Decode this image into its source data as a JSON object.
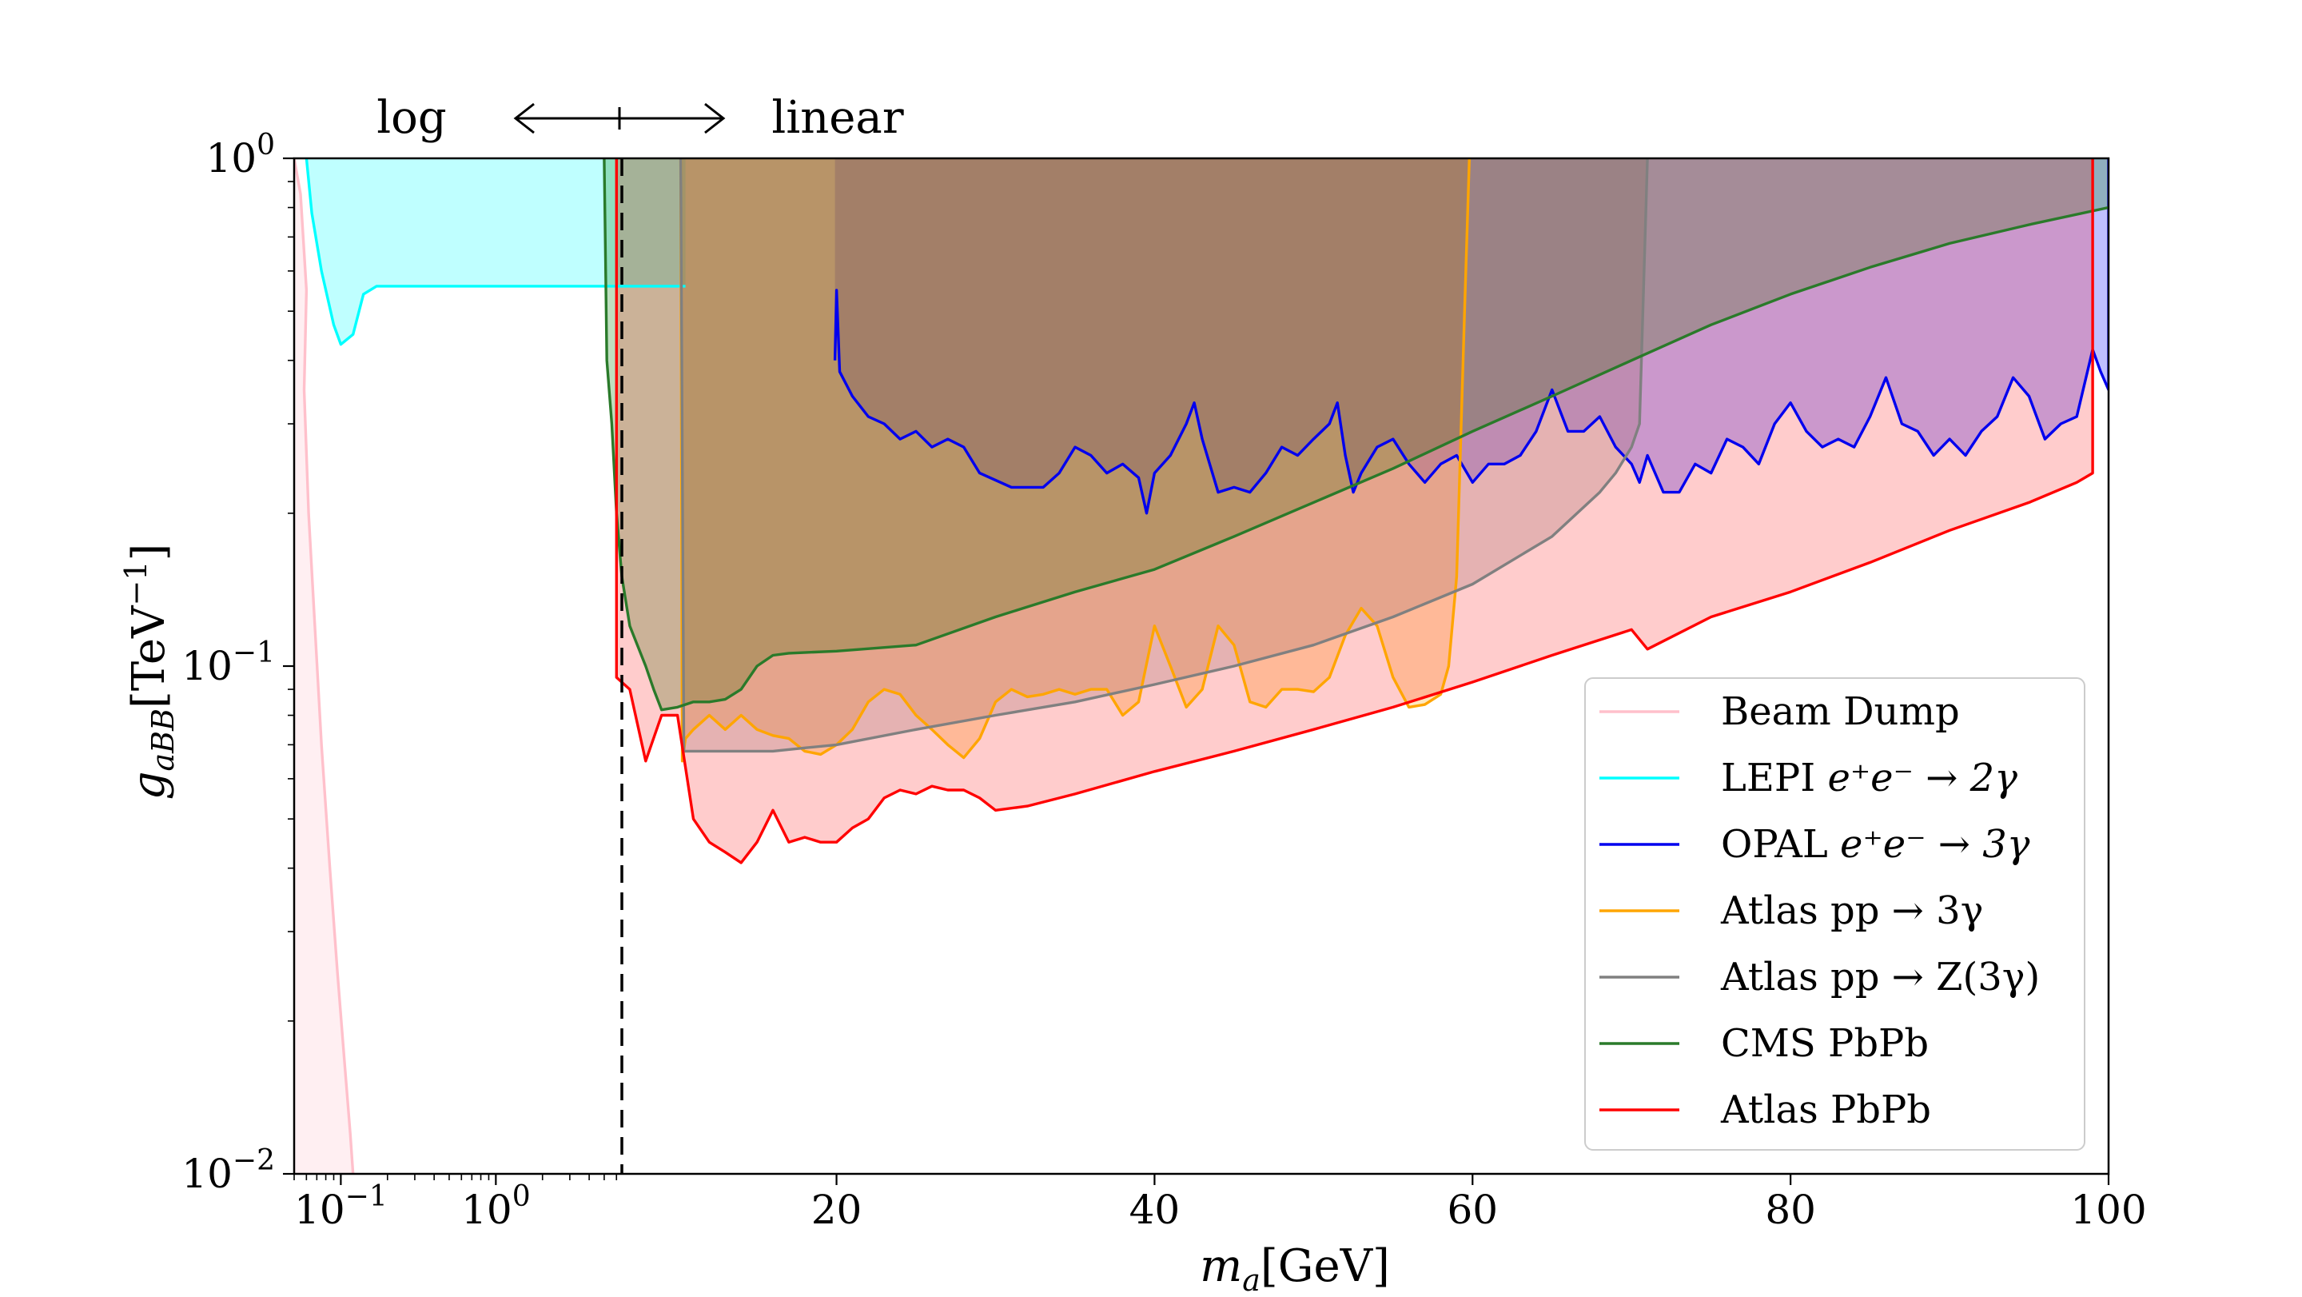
{
  "chart_data": {
    "type": "area",
    "xlabel": "m_a[GeV]",
    "ylabel": "g_aBB[TeV^-1]",
    "x_scale": "log (x < 6.5 GeV) / linear (x > 6.5 GeV)",
    "x_split": 6.5,
    "xlim": [
      0.05,
      100
    ],
    "ylim": [
      0.01,
      1
    ],
    "y_scale": "log",
    "x_ticks_log": [
      {
        "value": 0.1,
        "label": "10",
        "exp": "−1"
      },
      {
        "value": 1,
        "label": "10",
        "exp": "0"
      }
    ],
    "x_ticks_linear": [
      {
        "value": 20,
        "label": "20"
      },
      {
        "value": 40,
        "label": "40"
      },
      {
        "value": 60,
        "label": "60"
      },
      {
        "value": 80,
        "label": "80"
      },
      {
        "value": 100,
        "label": "100"
      }
    ],
    "y_ticks": [
      {
        "value": 1,
        "label": "10",
        "exp": "0"
      },
      {
        "value": 0.1,
        "label": "10",
        "exp": "−1"
      },
      {
        "value": 0.01,
        "label": "10",
        "exp": "−2"
      }
    ],
    "annotations": {
      "log": "log",
      "linear": "linear"
    },
    "legend_position": "lower-right",
    "series": [
      {
        "name": "Beam Dump",
        "legend": "Beam Dump",
        "color": "#ffc0cb",
        "fill": "#ffc0cb",
        "fill_opacity": 0.25,
        "fill_to": "left",
        "points": [
          [
            0.05,
            1.0
          ],
          [
            0.055,
            0.85
          ],
          [
            0.06,
            0.55
          ],
          [
            0.058,
            0.35
          ],
          [
            0.062,
            0.2
          ],
          [
            0.068,
            0.12
          ],
          [
            0.075,
            0.07
          ],
          [
            0.085,
            0.04
          ],
          [
            0.095,
            0.025
          ],
          [
            0.105,
            0.017
          ],
          [
            0.115,
            0.012
          ],
          [
            0.12,
            0.01
          ]
        ]
      },
      {
        "name": "LEPI e+e- -> 2gamma",
        "legend": "LEPI ",
        "legend_math": "e⁺e⁻ → 2γ",
        "color": "#00ffff",
        "fill": "#00ffff",
        "fill_opacity": 0.25,
        "fill_to": "top",
        "points": [
          [
            0.06,
            1.0
          ],
          [
            0.065,
            0.78
          ],
          [
            0.075,
            0.6
          ],
          [
            0.09,
            0.47
          ],
          [
            0.1,
            0.43
          ],
          [
            0.12,
            0.45
          ],
          [
            0.14,
            0.54
          ],
          [
            0.17,
            0.56
          ],
          [
            0.5,
            0.56
          ],
          [
            2,
            0.56
          ],
          [
            6.5,
            0.56
          ],
          [
            7.5,
            0.56
          ],
          [
            10.5,
            0.56
          ]
        ]
      },
      {
        "name": "OPAL e+e- -> 3gamma",
        "legend": "OPAL ",
        "legend_math": "e⁺e⁻ → 3γ",
        "color": "#0000ee",
        "fill": "#0000ff",
        "fill_opacity": 0.25,
        "fill_to": "top",
        "points": [
          [
            19.9,
            0.4
          ],
          [
            20.0,
            0.55
          ],
          [
            20.2,
            0.38
          ],
          [
            21,
            0.34
          ],
          [
            22,
            0.31
          ],
          [
            23,
            0.3
          ],
          [
            24,
            0.28
          ],
          [
            25,
            0.29
          ],
          [
            26,
            0.27
          ],
          [
            27,
            0.28
          ],
          [
            28,
            0.27
          ],
          [
            29,
            0.24
          ],
          [
            31,
            0.225
          ],
          [
            33,
            0.225
          ],
          [
            34,
            0.24
          ],
          [
            35,
            0.27
          ],
          [
            36,
            0.26
          ],
          [
            37,
            0.24
          ],
          [
            38,
            0.25
          ],
          [
            39,
            0.235
          ],
          [
            39.5,
            0.2
          ],
          [
            40,
            0.24
          ],
          [
            41,
            0.26
          ],
          [
            42,
            0.3
          ],
          [
            42.5,
            0.33
          ],
          [
            43,
            0.28
          ],
          [
            44,
            0.22
          ],
          [
            45,
            0.225
          ],
          [
            46,
            0.22
          ],
          [
            47,
            0.24
          ],
          [
            48,
            0.27
          ],
          [
            49,
            0.26
          ],
          [
            50,
            0.28
          ],
          [
            51,
            0.3
          ],
          [
            51.5,
            0.33
          ],
          [
            52,
            0.26
          ],
          [
            52.5,
            0.22
          ],
          [
            53,
            0.24
          ],
          [
            54,
            0.27
          ],
          [
            55,
            0.28
          ],
          [
            56,
            0.25
          ],
          [
            57,
            0.23
          ],
          [
            58,
            0.25
          ],
          [
            59,
            0.26
          ],
          [
            60,
            0.23
          ],
          [
            61,
            0.25
          ],
          [
            62,
            0.25
          ],
          [
            63,
            0.26
          ],
          [
            64,
            0.29
          ],
          [
            65,
            0.35
          ],
          [
            66,
            0.29
          ],
          [
            67,
            0.29
          ],
          [
            68,
            0.31
          ],
          [
            69,
            0.27
          ],
          [
            70,
            0.25
          ],
          [
            70.5,
            0.23
          ],
          [
            71,
            0.26
          ],
          [
            72,
            0.22
          ],
          [
            73,
            0.22
          ],
          [
            74,
            0.25
          ],
          [
            75,
            0.24
          ],
          [
            76,
            0.28
          ],
          [
            77,
            0.27
          ],
          [
            78,
            0.25
          ],
          [
            79,
            0.3
          ],
          [
            80,
            0.33
          ],
          [
            81,
            0.29
          ],
          [
            82,
            0.27
          ],
          [
            83,
            0.28
          ],
          [
            84,
            0.27
          ],
          [
            85,
            0.31
          ],
          [
            86,
            0.37
          ],
          [
            87,
            0.3
          ],
          [
            88,
            0.29
          ],
          [
            89,
            0.26
          ],
          [
            90,
            0.28
          ],
          [
            91,
            0.26
          ],
          [
            92,
            0.29
          ],
          [
            93,
            0.31
          ],
          [
            94,
            0.37
          ],
          [
            95,
            0.34
          ],
          [
            96,
            0.28
          ],
          [
            97,
            0.3
          ],
          [
            98,
            0.31
          ],
          [
            99,
            0.42
          ],
          [
            99.5,
            0.38
          ],
          [
            100,
            0.35
          ],
          [
            100,
            1.0
          ]
        ]
      },
      {
        "name": "Atlas pp -> 3gamma",
        "legend": "Atlas pp → 3γ",
        "color": "#ffa500",
        "fill": "#ffa500",
        "fill_opacity": 0.25,
        "fill_to": "top",
        "points": [
          [
            10.2,
            1.0
          ],
          [
            10.3,
            0.065
          ],
          [
            10.5,
            0.072
          ],
          [
            11,
            0.075
          ],
          [
            12,
            0.08
          ],
          [
            13,
            0.075
          ],
          [
            14,
            0.08
          ],
          [
            15,
            0.075
          ],
          [
            16,
            0.073
          ],
          [
            17,
            0.072
          ],
          [
            18,
            0.068
          ],
          [
            19,
            0.067
          ],
          [
            20,
            0.07
          ],
          [
            21,
            0.075
          ],
          [
            22,
            0.085
          ],
          [
            23,
            0.09
          ],
          [
            24,
            0.088
          ],
          [
            25,
            0.08
          ],
          [
            26,
            0.075
          ],
          [
            27,
            0.07
          ],
          [
            28,
            0.066
          ],
          [
            29,
            0.072
          ],
          [
            30,
            0.085
          ],
          [
            31,
            0.09
          ],
          [
            32,
            0.087
          ],
          [
            33,
            0.088
          ],
          [
            34,
            0.09
          ],
          [
            35,
            0.088
          ],
          [
            36,
            0.09
          ],
          [
            37,
            0.09
          ],
          [
            38,
            0.08
          ],
          [
            39,
            0.085
          ],
          [
            40,
            0.12
          ],
          [
            41,
            0.1
          ],
          [
            42,
            0.083
          ],
          [
            43,
            0.09
          ],
          [
            44,
            0.12
          ],
          [
            45,
            0.11
          ],
          [
            46,
            0.085
          ],
          [
            47,
            0.083
          ],
          [
            48,
            0.09
          ],
          [
            49,
            0.09
          ],
          [
            50,
            0.089
          ],
          [
            51,
            0.095
          ],
          [
            52,
            0.115
          ],
          [
            53,
            0.13
          ],
          [
            54,
            0.12
          ],
          [
            55,
            0.095
          ],
          [
            56,
            0.083
          ],
          [
            57,
            0.084
          ],
          [
            58,
            0.088
          ],
          [
            58.5,
            0.1
          ],
          [
            59,
            0.15
          ],
          [
            59.5,
            0.5
          ],
          [
            59.8,
            1.0
          ]
        ]
      },
      {
        "name": "Atlas pp -> Z(3gamma)",
        "legend": "Atlas pp → Z(3γ)",
        "color": "#808080",
        "fill": "#808080",
        "fill_opacity": 0.25,
        "fill_to": "top",
        "points": [
          [
            10.2,
            1.0
          ],
          [
            10.4,
            0.068
          ],
          [
            12,
            0.068
          ],
          [
            14,
            0.068
          ],
          [
            16,
            0.068
          ],
          [
            18,
            0.069
          ],
          [
            20,
            0.07
          ],
          [
            25,
            0.075
          ],
          [
            30,
            0.08
          ],
          [
            35,
            0.085
          ],
          [
            40,
            0.092
          ],
          [
            45,
            0.1
          ],
          [
            50,
            0.11
          ],
          [
            55,
            0.125
          ],
          [
            60,
            0.145
          ],
          [
            65,
            0.18
          ],
          [
            68,
            0.22
          ],
          [
            69,
            0.24
          ],
          [
            70,
            0.27
          ],
          [
            70.5,
            0.3
          ],
          [
            71,
            1.0
          ]
        ]
      },
      {
        "name": "CMS PbPb",
        "legend": "CMS PbPb",
        "color": "#2a7a2a",
        "fill": "#008000",
        "fill_opacity": 0.25,
        "fill_to": "top",
        "points": [
          [
            5.0,
            1.0
          ],
          [
            5.2,
            0.4
          ],
          [
            5.6,
            0.3
          ],
          [
            6.0,
            0.2
          ],
          [
            6.5,
            0.15
          ],
          [
            7,
            0.12
          ],
          [
            8,
            0.1
          ],
          [
            8.5,
            0.09
          ],
          [
            9,
            0.082
          ],
          [
            10,
            0.083
          ],
          [
            11,
            0.085
          ],
          [
            12,
            0.085
          ],
          [
            13,
            0.086
          ],
          [
            14,
            0.09
          ],
          [
            15,
            0.1
          ],
          [
            16,
            0.105
          ],
          [
            17,
            0.106
          ],
          [
            20,
            0.107
          ],
          [
            25,
            0.11
          ],
          [
            30,
            0.125
          ],
          [
            35,
            0.14
          ],
          [
            40,
            0.155
          ],
          [
            45,
            0.18
          ],
          [
            50,
            0.21
          ],
          [
            55,
            0.245
          ],
          [
            60,
            0.29
          ],
          [
            65,
            0.34
          ],
          [
            70,
            0.4
          ],
          [
            75,
            0.47
          ],
          [
            80,
            0.54
          ],
          [
            85,
            0.61
          ],
          [
            90,
            0.68
          ],
          [
            95,
            0.74
          ],
          [
            100,
            0.8
          ]
        ]
      },
      {
        "name": "Atlas PbPb",
        "legend": "Atlas PbPb",
        "color": "#ff0000",
        "fill": "#ff0000",
        "fill_opacity": 0.2,
        "fill_to": "top",
        "points": [
          [
            6.0,
            1.0
          ],
          [
            6.0,
            0.095
          ],
          [
            7,
            0.09
          ],
          [
            8,
            0.065
          ],
          [
            9,
            0.08
          ],
          [
            10,
            0.08
          ],
          [
            11,
            0.05
          ],
          [
            12,
            0.045
          ],
          [
            13,
            0.043
          ],
          [
            14,
            0.041
          ],
          [
            15,
            0.045
          ],
          [
            16,
            0.052
          ],
          [
            17,
            0.045
          ],
          [
            18,
            0.046
          ],
          [
            19,
            0.045
          ],
          [
            20,
            0.045
          ],
          [
            21,
            0.048
          ],
          [
            22,
            0.05
          ],
          [
            23,
            0.055
          ],
          [
            24,
            0.057
          ],
          [
            25,
            0.056
          ],
          [
            26,
            0.058
          ],
          [
            27,
            0.057
          ],
          [
            28,
            0.057
          ],
          [
            29,
            0.055
          ],
          [
            30,
            0.052
          ],
          [
            32,
            0.053
          ],
          [
            35,
            0.056
          ],
          [
            40,
            0.062
          ],
          [
            45,
            0.068
          ],
          [
            50,
            0.075
          ],
          [
            55,
            0.083
          ],
          [
            60,
            0.093
          ],
          [
            65,
            0.105
          ],
          [
            70,
            0.118
          ],
          [
            71,
            0.108
          ],
          [
            75,
            0.125
          ],
          [
            80,
            0.14
          ],
          [
            85,
            0.16
          ],
          [
            90,
            0.185
          ],
          [
            95,
            0.21
          ],
          [
            98,
            0.23
          ],
          [
            99,
            0.24
          ],
          [
            99,
            1.0
          ]
        ]
      }
    ]
  }
}
